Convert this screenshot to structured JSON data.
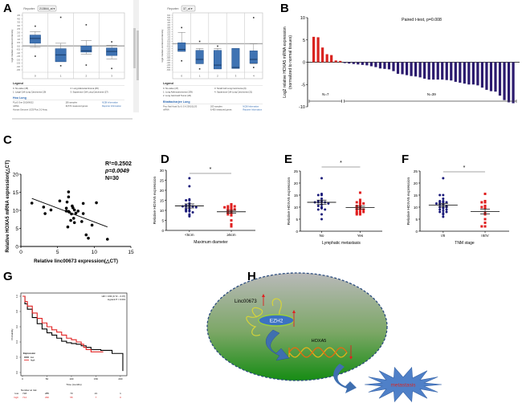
{
  "panels": {
    "A": "A",
    "B": "B",
    "C": "C",
    "D": "D",
    "E": "E",
    "F": "F",
    "G": "G",
    "H": "H"
  },
  "chart_data": [
    {
      "id": "A1",
      "type": "box",
      "title": "",
      "reporter_label": "Reporter:",
      "reporter_value": "213844_at",
      "ylabel": "log2 median-centered intensity",
      "ylim": [
        -3.5,
        4.5
      ],
      "yticks": [
        4.5,
        4.0,
        3.5,
        3.0,
        2.5,
        2.0,
        1.5,
        1.0,
        0.5,
        0.0,
        -0.5,
        -1.0,
        -1.5,
        -2.0,
        -2.5,
        -3.0,
        -3.5
      ],
      "categories": [
        "0",
        "1",
        "2",
        "3"
      ],
      "boxes": [
        {
          "q1": 0.4,
          "median": 1.1,
          "q3": 1.6,
          "wlow": -0.2,
          "whigh": 2.1,
          "outliers": [
            2.9,
            -1.5
          ]
        },
        {
          "q1": -2.3,
          "median": -1.3,
          "q3": -0.4,
          "wlow": -2.3,
          "whigh": 0.4,
          "outliers": [
            4.2,
            -2.9
          ]
        },
        {
          "q1": -0.9,
          "median": -0.7,
          "q3": 0.0,
          "wlow": -1.2,
          "whigh": 0.8,
          "outliers": [
            3.1,
            -2.8
          ]
        },
        {
          "q1": -1.4,
          "median": -0.8,
          "q3": -0.3,
          "wlow": -1.9,
          "whigh": 0.1,
          "outliers": [
            0.6,
            -3.3
          ]
        }
      ],
      "legend_title": "Legend",
      "legend": [
        "0. No value (45)",
        "2. Lung Adenocarcinoma (45)",
        "1. Large Cell Lung Carcinoma (19)",
        "3. Squamous Cell Lung Carcinoma (27)"
      ],
      "study": "Hou Lung",
      "info": [
        [
          "PLoS One 2010/06/22",
          "156 samples",
          "NCBI Information"
        ],
        [
          "mRNA",
          "19,574 measured genes",
          "Reporter Information"
        ],
        [
          "Human Genome U133 Plus 2.0 Array",
          "",
          ""
        ]
      ]
    },
    {
      "id": "A2",
      "type": "box",
      "reporter_label": "Reporter:",
      "reporter_value": "37_at",
      "ylabel": "log2 median-centered intensity",
      "ylim": [
        -5.5,
        6.0
      ],
      "categories": [
        "0",
        "1",
        "2",
        "3",
        "4"
      ],
      "boxes": [
        {
          "q1": -1.6,
          "median": -1.2,
          "q3": 0.2,
          "wlow": -1.6,
          "whigh": 2.4,
          "outliers": [
            3.4,
            -3.6
          ]
        },
        {
          "q1": -4.2,
          "median": -3.3,
          "q3": -1.4,
          "wlow": -4.2,
          "whigh": -1.0,
          "outliers": [
            0.5,
            -5.3
          ]
        },
        {
          "q1": -5.3,
          "median": -4.5,
          "q3": -1.4,
          "wlow": -5.3,
          "whigh": -1.0,
          "outliers": [
            -0.5
          ]
        },
        {
          "q1": -5.2,
          "median": -5.0,
          "q3": -1.0,
          "wlow": -5.2,
          "whigh": -1.0,
          "outliers": []
        },
        {
          "q1": -4.1,
          "median": -3.3,
          "q3": -1.5,
          "wlow": -4.2,
          "whigh": 0.0,
          "outliers": [
            5.5,
            -5.0
          ]
        }
      ],
      "legend_title": "Legend",
      "legend": [
        "0. No value (47)",
        "3. Small Cell Lung Carcinoma (6)",
        "1. Lung Adenocarcinoma (139)",
        "4. Squamous Cell Lung Carcinoma (21)",
        "2. Lung Carcinoid Tumor (20)"
      ],
      "study": "Bhattacharjee Lung",
      "info": [
        [
          "Proc Natl Acad Sci U S A 2001/11/20",
          "203 samples",
          "NCBI Information"
        ],
        [
          "mRNA",
          "8,450 measured genes",
          "Reporter Information"
        ]
      ]
    },
    {
      "id": "B",
      "type": "bar",
      "title": "Paired t-test, p=0.008",
      "ylabel": "Log2 relative HOXA5 mRNA expression",
      "ylabel2": "(normalized to normal tissues)",
      "ylim": [
        -10,
        10
      ],
      "yticks": [
        "10",
        "5",
        "0",
        "-5",
        "-10"
      ],
      "values": [
        5.7,
        5.6,
        3.3,
        1.8,
        1.6,
        0.4,
        0.3,
        -0.2,
        -0.3,
        -0.4,
        -0.5,
        -0.6,
        -0.7,
        -0.9,
        -1.1,
        -1.4,
        -1.5,
        -1.6,
        -2.0,
        -2.6,
        -2.7,
        -2.9,
        -3.1,
        -3.2,
        -3.4,
        -3.7,
        -3.9,
        -3.9,
        -3.9,
        -3.9,
        -4.0,
        -4.1,
        -4.4,
        -4.6,
        -4.8,
        -5.0,
        -5.0,
        -5.2,
        -5.7,
        -6.2,
        -6.5,
        -6.6,
        -7.5,
        -8.5,
        -9.0,
        -9.2
      ],
      "n_up_label": "N=7",
      "n_down_label": "N=39",
      "up_color": "#d9231f",
      "down_color": "#2b1a6e"
    },
    {
      "id": "C",
      "type": "scatter",
      "xlabel": "Relative linc00673 expression(△CT)",
      "ylabel": "Relative HOXA5 mRNA expression(△CT)",
      "xlim": [
        0,
        15
      ],
      "ylim": [
        0,
        20
      ],
      "xticks": [
        "0",
        "5",
        "10",
        "15"
      ],
      "yticks": [
        "0",
        "5",
        "10",
        "15",
        "20"
      ],
      "stats": [
        "R²=0.2502",
        "p=0.0049",
        "N=30"
      ],
      "points": [
        [
          1.5,
          12
        ],
        [
          3.1,
          10.9
        ],
        [
          3.3,
          9.1
        ],
        [
          4.1,
          10.1
        ],
        [
          5.3,
          12.6
        ],
        [
          6.2,
          10.6
        ],
        [
          6.3,
          12.3
        ],
        [
          6.5,
          15.1
        ],
        [
          6.5,
          13.7
        ],
        [
          6.4,
          5.4
        ],
        [
          6.5,
          9.7
        ],
        [
          6.6,
          9.5
        ],
        [
          6.8,
          7.2
        ],
        [
          6.9,
          9.0
        ],
        [
          7.0,
          11.2
        ],
        [
          7.1,
          10.7
        ],
        [
          7.2,
          7.8
        ],
        [
          7.3,
          10.1
        ],
        [
          7.3,
          6.6
        ],
        [
          7.5,
          9.2
        ],
        [
          7.8,
          9.8
        ],
        [
          8.3,
          6.9
        ],
        [
          8.5,
          9.1
        ],
        [
          8.5,
          11.9
        ],
        [
          8.9,
          3.2
        ],
        [
          9.2,
          2.3
        ],
        [
          9.7,
          5.9
        ],
        [
          10.3,
          12.1
        ],
        [
          11.8,
          2.0
        ],
        [
          6.2,
          9.8
        ]
      ],
      "regression": [
        [
          1.5,
          13.3
        ],
        [
          11.8,
          5.4
        ]
      ]
    },
    {
      "id": "D",
      "type": "scatter",
      "ylabel": "Relative HOXA5 expression",
      "xlabel": "Maximum diameter",
      "categories": [
        "<5cm",
        "≥5cm"
      ],
      "ylim": [
        0,
        30
      ],
      "yticks": [
        "0",
        "5",
        "10",
        "15",
        "20",
        "25",
        "30"
      ],
      "significance": "*",
      "groups": [
        {
          "name": "<5cm",
          "color": "#1a1a7a",
          "mean": 12.2,
          "sem": 1.0,
          "values": [
            26,
            22,
            15.5,
            15,
            15,
            13.5,
            12.5,
            12.5,
            12,
            12,
            12,
            12,
            11.5,
            11,
            10.5,
            10,
            10,
            9.5,
            9.5,
            9,
            8,
            7.5,
            7
          ]
        },
        {
          "name": "≥5cm",
          "color": "#e02020",
          "mean": 9.3,
          "sem": 0.7,
          "values": [
            13,
            12.5,
            12,
            12,
            12,
            11.5,
            11,
            11,
            10.5,
            10,
            10,
            9.5,
            9,
            8.5,
            8,
            7.5,
            5,
            3,
            2
          ]
        }
      ]
    },
    {
      "id": "E",
      "type": "scatter",
      "ylabel": "Relative HOXA5 expression",
      "xlabel": "Lymphatic metastasis",
      "categories": [
        "No",
        "Yes"
      ],
      "ylim": [
        0,
        25
      ],
      "yticks": [
        "0",
        "5",
        "10",
        "15",
        "20",
        "25"
      ],
      "significance": "*",
      "groups": [
        {
          "name": "No",
          "color": "#1a1a7a",
          "mean": 12.0,
          "sem": 0.9,
          "values": [
            22,
            15.5,
            15,
            15,
            13.5,
            12.5,
            12.5,
            12,
            12,
            12,
            12,
            11.5,
            11,
            10.5,
            10,
            9.5,
            9,
            9,
            7,
            5
          ]
        },
        {
          "name": "Yes",
          "color": "#e02020",
          "mean": 9.8,
          "sem": 0.6,
          "values": [
            16,
            13,
            12,
            12,
            11.5,
            11,
            10.5,
            10,
            10,
            9.5,
            9,
            9,
            8.5,
            8,
            8,
            7.5,
            7.5,
            7,
            7
          ]
        }
      ]
    },
    {
      "id": "F",
      "type": "scatter",
      "ylabel": "Relative HOXA5 expression",
      "xlabel": "TNM stage",
      "categories": [
        "I/II",
        "III/IV"
      ],
      "ylim": [
        0,
        25
      ],
      "yticks": [
        "0",
        "5",
        "10",
        "15",
        "20",
        "25"
      ],
      "significance": "*",
      "groups": [
        {
          "name": "I/II",
          "color": "#1a1a7a",
          "mean": 10.8,
          "sem": 0.7,
          "values": [
            22,
            15,
            15,
            13.5,
            12.5,
            12.5,
            12,
            12,
            12,
            11.5,
            11,
            11,
            10.5,
            10,
            10,
            10,
            9.5,
            9,
            9,
            8.5,
            8,
            8,
            7.5,
            7,
            6
          ]
        },
        {
          "name": "III/IV",
          "color": "#e02020",
          "mean": 8.2,
          "sem": 1.0,
          "values": [
            15.5,
            12.5,
            12,
            12,
            10.5,
            10,
            10,
            9.5,
            7.5,
            7,
            5,
            3.5,
            2,
            2
          ]
        }
      ]
    },
    {
      "id": "G",
      "type": "line",
      "annotation": [
        "HR = 0.84 (0.72 − 0.97)",
        "logrank P = 0.019"
      ],
      "xlabel": "Time (months)",
      "ylabel": "Probability",
      "xlim": [
        0,
        210
      ],
      "ylim": [
        0,
        1
      ],
      "xticks": [
        "0",
        "50",
        "100",
        "150",
        "200"
      ],
      "yticks": [
        "0.0",
        "0.2",
        "0.4",
        "0.6",
        "0.8",
        "1.0"
      ],
      "legend_title": "Expression",
      "series": [
        {
          "name": "low",
          "color": "#000000",
          "points": [
            [
              0,
              1
            ],
            [
              5,
              0.9
            ],
            [
              10,
              0.83
            ],
            [
              20,
              0.72
            ],
            [
              30,
              0.64
            ],
            [
              40,
              0.57
            ],
            [
              50,
              0.52
            ],
            [
              60,
              0.49
            ],
            [
              70,
              0.45
            ],
            [
              80,
              0.41
            ],
            [
              90,
              0.39
            ],
            [
              100,
              0.38
            ],
            [
              110,
              0.37
            ],
            [
              120,
              0.35
            ],
            [
              130,
              0.33
            ],
            [
              140,
              0.3
            ],
            [
              150,
              0.3
            ],
            [
              160,
              0.29
            ],
            [
              170,
              0.29
            ],
            [
              180,
              0.29
            ],
            [
              183,
              0.25
            ],
            [
              205,
              0.25
            ],
            [
              205,
              0.02
            ]
          ]
        },
        {
          "name": "high",
          "color": "#e02020",
          "points": [
            [
              0,
              1
            ],
            [
              5,
              0.93
            ],
            [
              10,
              0.87
            ],
            [
              20,
              0.78
            ],
            [
              30,
              0.71
            ],
            [
              40,
              0.65
            ],
            [
              50,
              0.6
            ],
            [
              60,
              0.56
            ],
            [
              70,
              0.53
            ],
            [
              80,
              0.49
            ],
            [
              90,
              0.45
            ],
            [
              100,
              0.43
            ],
            [
              110,
              0.4
            ],
            [
              120,
              0.37
            ],
            [
              125,
              0.33
            ],
            [
              130,
              0.3
            ],
            [
              140,
              0.27
            ],
            [
              150,
              0.27
            ],
            [
              160,
              0.27
            ],
            [
              165,
              0.27
            ]
          ]
        }
      ],
      "risk_table": {
        "title": "Number at risk",
        "rows": [
          {
            "name": "low",
            "color": "#000000",
            "values": [
              "718",
              "285",
              "73",
              "21",
              "1"
            ]
          },
          {
            "name": "high",
            "color": "#e02020",
            "values": [
              "714",
              "296",
              "55",
              "7",
              "0"
            ]
          }
        ]
      }
    }
  ],
  "diagram_H": {
    "linc_label": "Linc00673",
    "ezh2_label": "EZH2",
    "hoxa5_label": "HOXA5",
    "metastasis_label": "metastasis"
  }
}
